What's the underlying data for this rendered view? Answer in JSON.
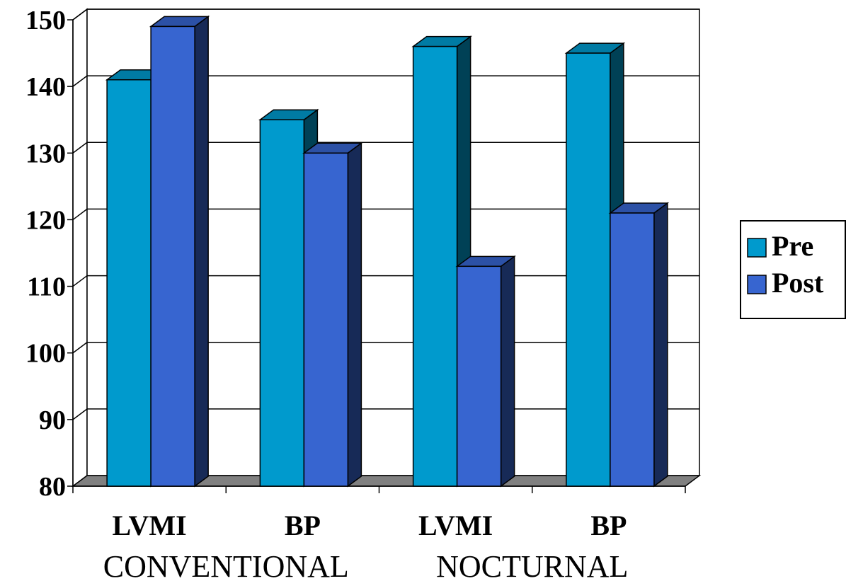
{
  "chart_data": {
    "type": "bar",
    "style": "3d-clustered",
    "categories": [
      "LVMI",
      "BP",
      "LVMI",
      "BP"
    ],
    "groups": [
      {
        "label": "CONVENTIONAL",
        "categories": [
          0,
          1
        ]
      },
      {
        "label": "NOCTURNAL",
        "categories": [
          2,
          3
        ]
      }
    ],
    "series": [
      {
        "name": "Pre",
        "color": "#009ACD",
        "values": [
          141,
          135,
          146,
          145
        ]
      },
      {
        "name": "Post",
        "color": "#3765D0",
        "values": [
          149,
          130,
          113,
          121
        ]
      }
    ],
    "ylim": [
      80,
      150
    ],
    "yticks": [
      "80",
      "90",
      "100",
      "110",
      "120",
      "130",
      "140",
      "150"
    ],
    "grid": true,
    "legend": "right"
  }
}
